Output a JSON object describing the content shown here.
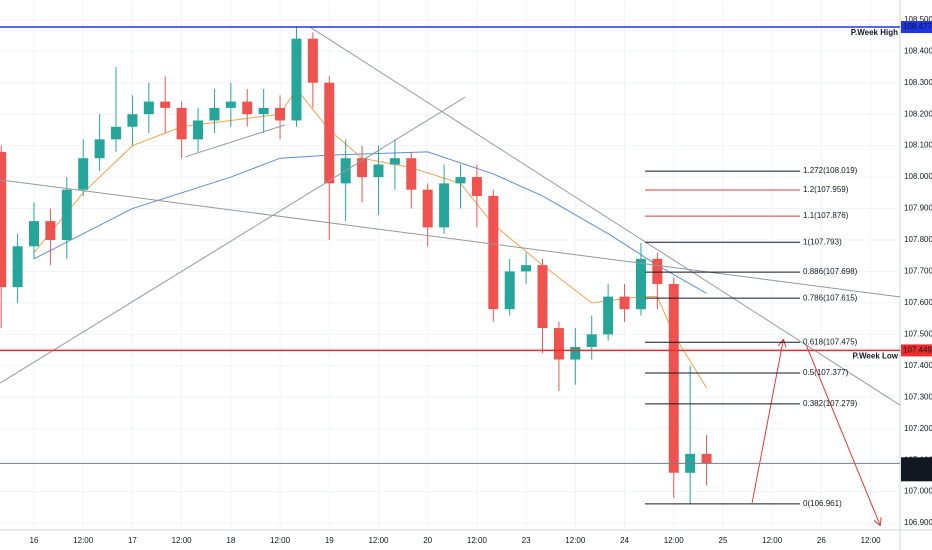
{
  "chart_data": {
    "type": "candlestick",
    "x": [
      -8,
      -4,
      0,
      4,
      8,
      12,
      16,
      20,
      24,
      28,
      32,
      36,
      40,
      44,
      48,
      52,
      56,
      60,
      64,
      68,
      72,
      76,
      80,
      84,
      88,
      92,
      96,
      100,
      104,
      108,
      112,
      116,
      120,
      124,
      128,
      132,
      136,
      140,
      144,
      148,
      152,
      156,
      160,
      164
    ],
    "open": [
      108.08,
      107.65,
      107.78,
      107.86,
      107.8,
      107.96,
      108.06,
      108.12,
      108.16,
      108.2,
      108.24,
      108.22,
      108.12,
      108.18,
      108.22,
      108.24,
      108.2,
      108.22,
      108.18,
      108.44,
      108.3,
      107.98,
      108.06,
      108.0,
      108.04,
      108.06,
      107.96,
      107.84,
      107.98,
      108.0,
      107.94,
      107.58,
      107.7,
      107.72,
      107.52,
      107.42,
      107.46,
      107.5,
      107.62,
      107.58,
      107.74,
      107.66,
      107.06,
      107.12
    ],
    "high": [
      108.1,
      107.82,
      107.92,
      107.9,
      108.0,
      108.12,
      108.2,
      108.35,
      108.26,
      108.3,
      108.32,
      108.24,
      108.22,
      108.28,
      108.3,
      108.28,
      108.28,
      108.26,
      108.48,
      108.46,
      108.32,
      108.12,
      108.1,
      108.1,
      108.12,
      108.08,
      107.98,
      108.04,
      108.04,
      108.04,
      107.96,
      107.74,
      107.76,
      107.74,
      107.54,
      107.52,
      107.56,
      107.66,
      107.66,
      107.79,
      107.76,
      107.68,
      107.4,
      107.18
    ],
    "low": [
      107.52,
      107.6,
      107.74,
      107.72,
      107.74,
      107.94,
      108.02,
      108.08,
      108.1,
      108.14,
      108.14,
      108.06,
      108.08,
      108.14,
      108.16,
      108.16,
      108.14,
      108.12,
      108.16,
      108.22,
      107.8,
      107.86,
      107.92,
      107.88,
      107.96,
      107.9,
      107.78,
      107.82,
      107.9,
      107.84,
      107.54,
      107.56,
      107.66,
      107.44,
      107.32,
      107.34,
      107.42,
      107.48,
      107.54,
      107.56,
      107.58,
      106.98,
      106.96,
      107.02
    ],
    "close": [
      107.65,
      107.78,
      107.86,
      107.8,
      107.96,
      108.06,
      108.12,
      108.16,
      108.2,
      108.24,
      108.22,
      108.12,
      108.18,
      108.22,
      108.24,
      108.2,
      108.22,
      108.18,
      108.44,
      108.3,
      107.98,
      108.06,
      108.0,
      108.04,
      108.06,
      107.96,
      107.84,
      107.98,
      108.0,
      107.94,
      107.58,
      107.7,
      107.72,
      107.52,
      107.42,
      107.46,
      107.5,
      107.62,
      107.58,
      107.74,
      107.66,
      107.06,
      107.12,
      107.09
    ],
    "up_color": "#26a69a",
    "down_color": "#ef5350",
    "xlim": [
      -8.29,
      211.17
    ],
    "ylim": [
      106.878,
      108.563
    ],
    "xticks": [
      {
        "value": 0,
        "label": "16"
      },
      {
        "value": 12,
        "label": "12:00"
      },
      {
        "value": 24,
        "label": "17"
      },
      {
        "value": 36,
        "label": "12:00"
      },
      {
        "value": 48,
        "label": "18"
      },
      {
        "value": 60,
        "label": "12:00"
      },
      {
        "value": 72,
        "label": "19"
      },
      {
        "value": 84,
        "label": "12:00"
      },
      {
        "value": 96,
        "label": "20"
      },
      {
        "value": 108,
        "label": "12:00"
      },
      {
        "value": 120,
        "label": "23"
      },
      {
        "value": 132,
        "label": "12:00"
      },
      {
        "value": 144,
        "label": "24"
      },
      {
        "value": 156,
        "label": "12:00"
      },
      {
        "value": 168,
        "label": "25"
      },
      {
        "value": 180,
        "label": "12:00"
      },
      {
        "value": 192,
        "label": "26"
      },
      {
        "value": 204,
        "label": "12:00"
      }
    ],
    "yticks": [
      {
        "value": 106.9,
        "label": "106.900"
      },
      {
        "value": 107,
        "label": "107.000"
      },
      {
        "value": 107.1,
        "label": "107.100"
      },
      {
        "value": 107.2,
        "label": "107.200"
      },
      {
        "value": 107.3,
        "label": "107.300"
      },
      {
        "value": 107.4,
        "label": "107.400"
      },
      {
        "value": 107.5,
        "label": "107.500"
      },
      {
        "value": 107.6,
        "label": "107.600"
      },
      {
        "value": 107.7,
        "label": "107.700"
      },
      {
        "value": 107.8,
        "label": "107.800"
      },
      {
        "value": 107.9,
        "label": "107.900"
      },
      {
        "value": 108,
        "label": "108.000"
      },
      {
        "value": 108.1,
        "label": "108.100"
      },
      {
        "value": 108.2,
        "label": "108.200"
      },
      {
        "value": 108.3,
        "label": "108.300"
      },
      {
        "value": 108.4,
        "label": "108.400"
      },
      {
        "value": 108.5,
        "label": "108.500"
      }
    ],
    "grid": true,
    "overlays": [
      {
        "color": "#f7a14a",
        "x": [
          0,
          12,
          24,
          36,
          48,
          60,
          64,
          72,
          80,
          92,
          104,
          112,
          124,
          136,
          148,
          152,
          156,
          164
        ],
        "values": [
          107.76,
          107.95,
          108.1,
          108.16,
          108.18,
          108.2,
          108.28,
          108.15,
          108.06,
          108.03,
          107.98,
          107.85,
          107.72,
          107.6,
          107.62,
          107.62,
          107.5,
          107.33
        ]
      },
      {
        "color": "#5b8fd6",
        "x": [
          0,
          24,
          48,
          60,
          72,
          96,
          112,
          124,
          140,
          152,
          164
        ],
        "values": [
          107.74,
          107.9,
          108.0,
          108.06,
          108.07,
          108.08,
          108.01,
          107.94,
          107.82,
          107.72,
          107.63
        ]
      }
    ],
    "trendlines": [
      {
        "color": "#9598a1",
        "x": [
          67.3,
          211.17
        ],
        "y": [
          108.477,
          107.275
        ],
        "arrow": false
      },
      {
        "color": "#9598a1",
        "x": [
          -8.29,
          211.17
        ],
        "y": [
          107.991,
          107.619
        ],
        "arrow": false
      },
      {
        "color": "#9598a1",
        "x": [
          -8.29,
          105.1
        ],
        "y": [
          107.345,
          108.254
        ],
        "arrow": false
      },
      {
        "color": "#9598a1",
        "x": [
          36.8,
          61.2
        ],
        "y": [
          108.064,
          108.166
        ],
        "arrow": false
      },
      {
        "color": "#e53935",
        "x": [
          175.1,
          182.7
        ],
        "y": [
          106.964,
          107.482
        ],
        "arrow": true
      },
      {
        "color": "#e53935",
        "x": [
          188.3,
          206.3
        ],
        "y": [
          107.466,
          106.894
        ],
        "arrow": true
      }
    ],
    "levels": [
      {
        "value": 108.477,
        "name": "P.Week High",
        "color": "#1e35e8"
      },
      {
        "value": 107.449,
        "name": "P.Week Low",
        "color": "#ef2b2b"
      }
    ],
    "last_price": {
      "value": 107.09,
      "label": "107.090",
      "countdown": "20:29",
      "color": "#787b86"
    },
    "fib_x": [
      149,
      186.8
    ],
    "fib": [
      {
        "value": 108.019,
        "label": "1.272(108.019)",
        "color": "#131722"
      },
      {
        "value": 107.959,
        "label": "1.2(107.959)",
        "color": "#e53935"
      },
      {
        "value": 107.876,
        "label": "1.1(107.876)",
        "color": "#e53935"
      },
      {
        "value": 107.793,
        "label": "1(107.793)",
        "color": "#131722"
      },
      {
        "value": 107.698,
        "label": "0.886(107.698)",
        "color": "#131722"
      },
      {
        "value": 107.615,
        "label": "0.786(107.615)",
        "color": "#131722"
      },
      {
        "value": 107.475,
        "label": "0.618(107.475)",
        "color": "#131722"
      },
      {
        "value": 107.377,
        "label": "0.5(107.377)",
        "color": "#131722"
      },
      {
        "value": 107.279,
        "label": "0.382(107.279)",
        "color": "#131722"
      },
      {
        "value": 106.961,
        "label": "0(106.961)",
        "color": "#131722"
      }
    ]
  }
}
